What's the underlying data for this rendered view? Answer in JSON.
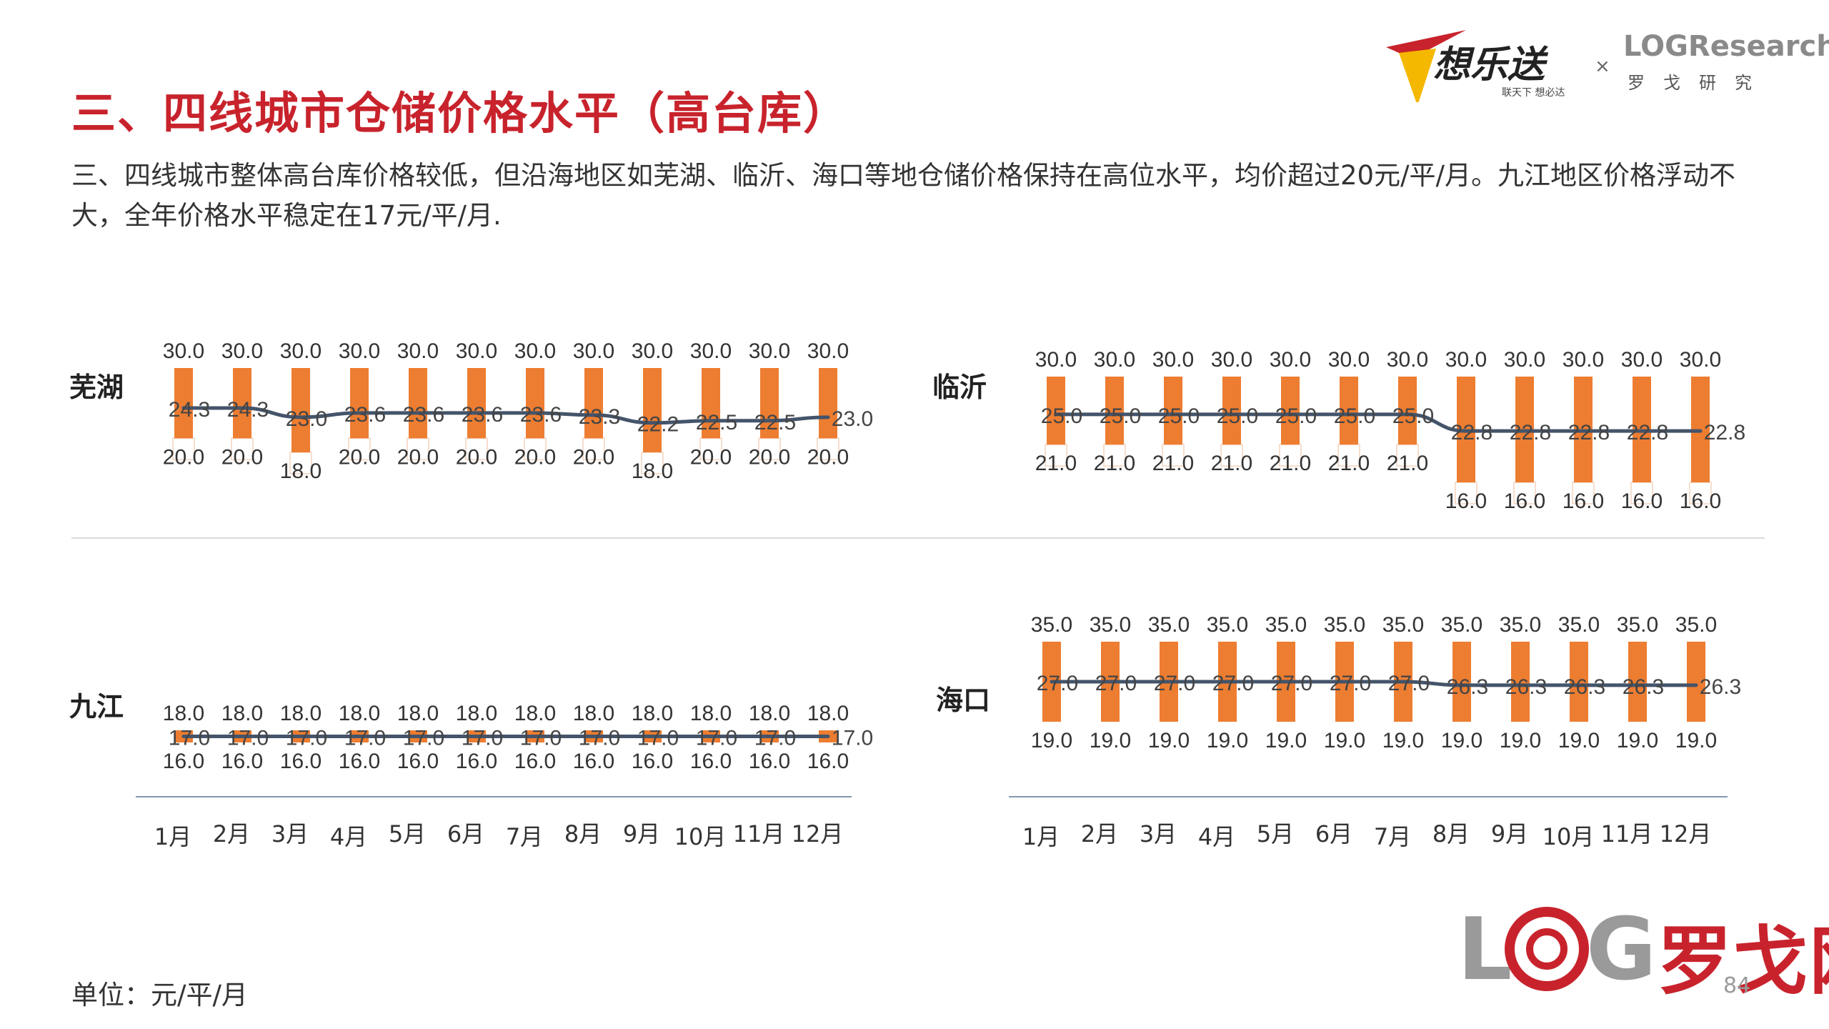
{
  "header": {
    "title": "三、四线城市仓储价格水平（高台库）",
    "description": "三、四线城市整体高台库价格较低，但沿海地区如芜湖、临沂、海口等地仓储价格保持在高位水平，均价超过20元/平/月。九江地区价格浮动不大，全年价格水平稳定在17元/平/月.",
    "logo_left_text": "想乐送",
    "logo_left_sub": "联天下 想必达",
    "logo_times": "×",
    "logo_right_text": "LOGResearch",
    "logo_right_sub": "罗戈研究"
  },
  "footer": {
    "unit": "单位：元/平/月",
    "page": "84",
    "watermark_text": "罗戈网"
  },
  "colors": {
    "title": "#c8232c",
    "bar": "#ed7d31",
    "line": "#44546a"
  },
  "chart_data": [
    {
      "type": "bar",
      "city": "芜湖",
      "categories": [
        "1月",
        "2月",
        "3月",
        "4月",
        "5月",
        "6月",
        "7月",
        "8月",
        "9月",
        "10月",
        "11月",
        "12月"
      ],
      "series": [
        {
          "name": "high",
          "values": [
            30.0,
            30.0,
            30.0,
            30.0,
            30.0,
            30.0,
            30.0,
            30.0,
            30.0,
            30.0,
            30.0,
            30.0
          ]
        },
        {
          "name": "low",
          "values": [
            20.0,
            20.0,
            18.0,
            20.0,
            20.0,
            20.0,
            20.0,
            20.0,
            18.0,
            20.0,
            20.0,
            20.0
          ]
        },
        {
          "name": "avg",
          "values": [
            24.3,
            24.3,
            23.0,
            23.6,
            23.6,
            23.6,
            23.6,
            23.3,
            22.2,
            22.5,
            22.5,
            23.0
          ]
        }
      ],
      "labels_high": [
        "30.0",
        "30.0",
        "30.0",
        "30.0",
        "30.0",
        "30.0",
        "30.0",
        "30.0",
        "30.0",
        "30.0",
        "30.0",
        "30.0"
      ],
      "labels_low": [
        "20.0",
        "20.0",
        "18.0",
        "20.0",
        "20.0",
        "20.0",
        "20.0",
        "20.0",
        "18.0",
        "20.0",
        "20.0",
        "20.0"
      ],
      "labels_avg": [
        "24.3",
        "24.3",
        "23.0",
        "23.6",
        "23.6",
        "23.6",
        "23.6",
        "23.3",
        "22.2",
        "22.5",
        "22.5",
        "23.0"
      ]
    },
    {
      "type": "bar",
      "city": "临沂",
      "categories": [
        "1月",
        "2月",
        "3月",
        "4月",
        "5月",
        "6月",
        "7月",
        "8月",
        "9月",
        "10月",
        "11月",
        "12月"
      ],
      "series": [
        {
          "name": "high",
          "values": [
            30.0,
            30.0,
            30.0,
            30.0,
            30.0,
            30.0,
            30.0,
            30.0,
            30.0,
            30.0,
            30.0,
            30.0
          ]
        },
        {
          "name": "low",
          "values": [
            21.0,
            21.0,
            21.0,
            21.0,
            21.0,
            21.0,
            21.0,
            16.0,
            16.0,
            16.0,
            16.0,
            16.0
          ]
        },
        {
          "name": "avg",
          "values": [
            25.0,
            25.0,
            25.0,
            25.0,
            25.0,
            25.0,
            25.0,
            22.8,
            22.8,
            22.8,
            22.8,
            22.8
          ]
        }
      ],
      "labels_high": [
        "30.0",
        "30.0",
        "30.0",
        "30.0",
        "30.0",
        "30.0",
        "30.0",
        "30.0",
        "30.0",
        "30.0",
        "30.0",
        "30.0"
      ],
      "labels_low": [
        "21.0",
        "21.0",
        "21.0",
        "21.0",
        "21.0",
        "21.0",
        "21.0",
        "16.0",
        "16.0",
        "16.0",
        "16.0",
        "16.0"
      ],
      "labels_avg": [
        "25.0",
        "25.0",
        "25.0",
        "25.0",
        "25.0",
        "25.0",
        "25.0",
        "22.8",
        "22.8",
        "22.8",
        "22.8",
        "22.8"
      ]
    },
    {
      "type": "bar",
      "city": "九江",
      "categories": [
        "1月",
        "2月",
        "3月",
        "4月",
        "5月",
        "6月",
        "7月",
        "8月",
        "9月",
        "10月",
        "11月",
        "12月"
      ],
      "series": [
        {
          "name": "high",
          "values": [
            18.0,
            18.0,
            18.0,
            18.0,
            18.0,
            18.0,
            18.0,
            18.0,
            18.0,
            18.0,
            18.0,
            18.0
          ]
        },
        {
          "name": "low",
          "values": [
            16.0,
            16.0,
            16.0,
            16.0,
            16.0,
            16.0,
            16.0,
            16.0,
            16.0,
            16.0,
            16.0,
            16.0
          ]
        },
        {
          "name": "avg",
          "values": [
            17.0,
            17.0,
            17.0,
            17.0,
            17.0,
            17.0,
            17.0,
            17.0,
            17.0,
            17.0,
            17.0,
            17.0
          ]
        }
      ],
      "labels_high": [
        "18.0",
        "18.0",
        "18.0",
        "18.0",
        "18.0",
        "18.0",
        "18.0",
        "18.0",
        "18.0",
        "18.0",
        "18.0",
        "18.0"
      ],
      "labels_low": [
        "16.0",
        "16.0",
        "16.0",
        "16.0",
        "16.0",
        "16.0",
        "16.0",
        "16.0",
        "16.0",
        "16.0",
        "16.0",
        "16.0"
      ],
      "labels_avg": [
        "17.0",
        "17.0",
        "17.0",
        "17.0",
        "17.0",
        "17.0",
        "17.0",
        "17.0",
        "17.0",
        "17.0",
        "17.0",
        "17.0"
      ]
    },
    {
      "type": "bar",
      "city": "海口",
      "categories": [
        "1月",
        "2月",
        "3月",
        "4月",
        "5月",
        "6月",
        "7月",
        "8月",
        "9月",
        "10月",
        "11月",
        "12月"
      ],
      "series": [
        {
          "name": "high",
          "values": [
            35.0,
            35.0,
            35.0,
            35.0,
            35.0,
            35.0,
            35.0,
            35.0,
            35.0,
            35.0,
            35.0,
            35.0
          ]
        },
        {
          "name": "low",
          "values": [
            19.0,
            19.0,
            19.0,
            19.0,
            19.0,
            19.0,
            19.0,
            19.0,
            19.0,
            19.0,
            19.0,
            19.0
          ]
        },
        {
          "name": "avg",
          "values": [
            27.0,
            27.0,
            27.0,
            27.0,
            27.0,
            27.0,
            27.0,
            26.3,
            26.3,
            26.3,
            26.3,
            26.3
          ]
        }
      ],
      "labels_high": [
        "35.0",
        "35.0",
        "35.0",
        "35.0",
        "35.0",
        "35.0",
        "35.0",
        "35.0",
        "35.0",
        "35.0",
        "35.0",
        "35.0"
      ],
      "labels_low": [
        "19.0",
        "19.0",
        "19.0",
        "19.0",
        "19.0",
        "19.0",
        "19.0",
        "19.0",
        "19.0",
        "19.0",
        "19.0",
        "19.0"
      ],
      "labels_avg": [
        "27.0",
        "27.0",
        "27.0",
        "27.0",
        "27.0",
        "27.0",
        "27.0",
        "26.3",
        "26.3",
        "26.3",
        "26.3",
        "26.3"
      ]
    }
  ]
}
